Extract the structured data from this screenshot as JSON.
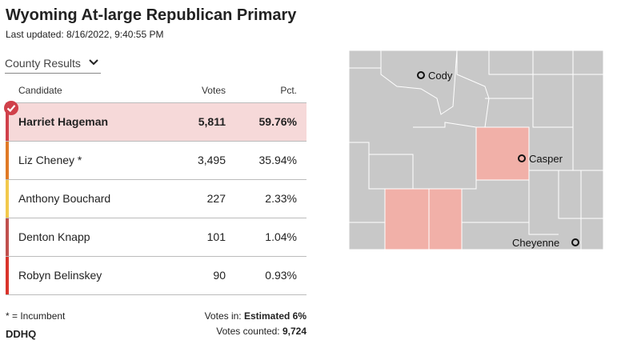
{
  "header": {
    "title": "Wyoming At-large Republican Primary",
    "updated": "Last updated: 8/16/2022, 9:40:55 PM"
  },
  "selector": {
    "label": "County Results"
  },
  "table": {
    "columns": {
      "candidate": "Candidate",
      "votes": "Votes",
      "pct": "Pct."
    },
    "rows": [
      {
        "name": "Harriet Hageman",
        "votes": "5,811",
        "pct": "59.76%",
        "color": "#d0404a",
        "winner": true
      },
      {
        "name": "Liz Cheney  *",
        "votes": "3,495",
        "pct": "35.94%",
        "color": "#e07a26",
        "winner": false
      },
      {
        "name": "Anthony Bouchard",
        "votes": "227",
        "pct": "2.33%",
        "color": "#f2c94c",
        "winner": false
      },
      {
        "name": "Denton Knapp",
        "votes": "101",
        "pct": "1.04%",
        "color": "#c0504d",
        "winner": false
      },
      {
        "name": "Robyn Belinskey",
        "votes": "90",
        "pct": "0.93%",
        "color": "#d9342b",
        "winner": false
      }
    ]
  },
  "footer": {
    "incumbent_note": "* = Incumbent",
    "votes_in_label": "Votes in: ",
    "votes_in_value": "Estimated 6%",
    "votes_counted_label": "Votes counted: ",
    "votes_counted_value": "9,724"
  },
  "logo": {
    "text": "DDHQ"
  },
  "map": {
    "base_color": "#c8c8c8",
    "highlight_color": "#f1b0a8",
    "cities": [
      "Cody",
      "Casper",
      "Cheyenne"
    ]
  }
}
